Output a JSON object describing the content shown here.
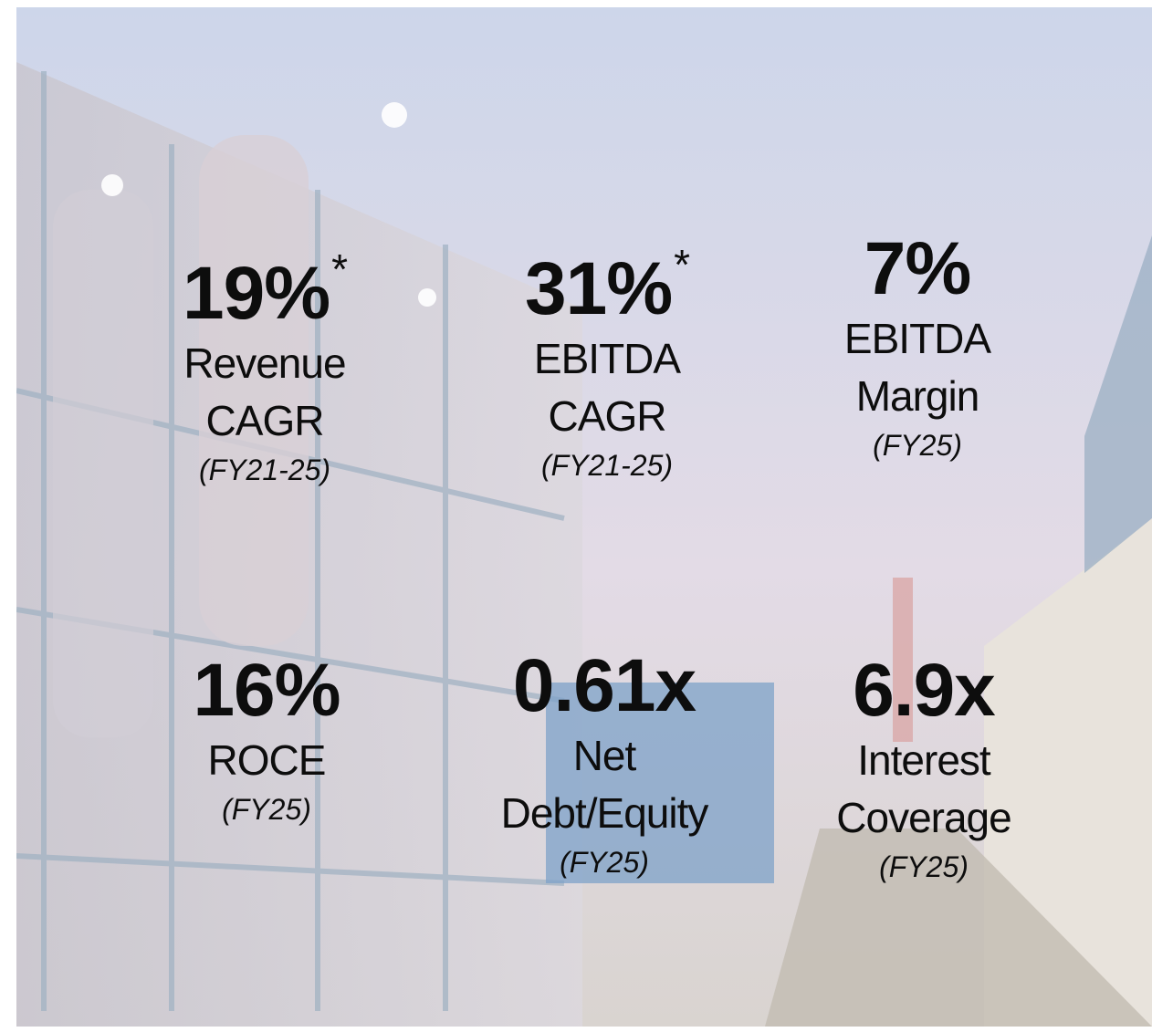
{
  "metrics": [
    {
      "value": "19%",
      "star": "*",
      "label": [
        "Revenue",
        "CAGR"
      ],
      "period": "(FY21-25)"
    },
    {
      "value": "31%",
      "star": "*",
      "label": [
        "EBITDA",
        "CAGR"
      ],
      "period": "(FY21-25)"
    },
    {
      "value": "7%",
      "label": [
        "EBITDA",
        "Margin"
      ],
      "period": "(FY25)"
    },
    {
      "value": "16%",
      "label": [
        "ROCE"
      ],
      "period": "(FY25)"
    },
    {
      "value": "0.61x",
      "label": [
        "Net",
        "Debt/Equity"
      ],
      "period": "(FY25)"
    },
    {
      "value": "6.9x",
      "label": [
        "Interest",
        "Coverage"
      ],
      "period": "(FY25)"
    }
  ]
}
